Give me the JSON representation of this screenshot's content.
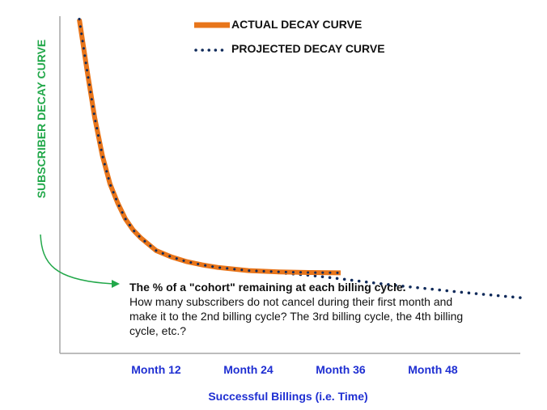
{
  "chart_data": {
    "type": "line",
    "title": "",
    "xlabel": "Successful Billings (i.e. Time)",
    "ylabel": "SUBSCRIBER DECAY CURVE",
    "x_ticks": [
      "Month 12",
      "Month 24",
      "Month 36",
      "Month 48"
    ],
    "tick_positions": [
      12,
      24,
      36,
      48
    ],
    "xlim": [
      1,
      60
    ],
    "ylim": [
      0,
      100
    ],
    "grid": false,
    "legend_position": "top-center",
    "series": [
      {
        "name": "ACTUAL DECAY CURVE",
        "style": "solid",
        "color": "#E8751A",
        "x": [
          2,
          3,
          4,
          5,
          6,
          7,
          8,
          9,
          10,
          12,
          14,
          16,
          18,
          20,
          24,
          28,
          32,
          36
        ],
        "y": [
          97,
          81,
          66,
          54,
          45,
          39,
          34,
          30.5,
          28,
          24,
          22,
          20.5,
          19.5,
          18.7,
          17.7,
          17.3,
          17.1,
          17.0
        ]
      },
      {
        "name": "PROJECTED DECAY CURVE",
        "style": "dotted",
        "color": "#0F2A5A",
        "x": [
          2,
          3,
          4,
          5,
          6,
          7,
          8,
          9,
          10,
          12,
          14,
          16,
          18,
          20,
          24,
          28,
          32,
          36,
          40,
          44,
          48,
          52,
          56,
          60
        ],
        "y": [
          97,
          81,
          66,
          54,
          45,
          39,
          34,
          30.5,
          28,
          24,
          22,
          20.5,
          19.5,
          18.7,
          17.7,
          17.0,
          16.2,
          15.1,
          13.9,
          12.8,
          11.8,
          10.8,
          9.9,
          9.0
        ]
      }
    ],
    "annotation": {
      "title": "The % of a \"cohort\" remaining at each billing cycle.",
      "body": "How many subscribers do not cancel during their first month and make it to the 2nd billing cycle? The 3rd billing cycle, the 4th billing cycle, etc.?"
    }
  },
  "colors": {
    "ylabel": "#22A84A",
    "ticks": "#1F2FD2",
    "axis": "#A6A6A6"
  }
}
